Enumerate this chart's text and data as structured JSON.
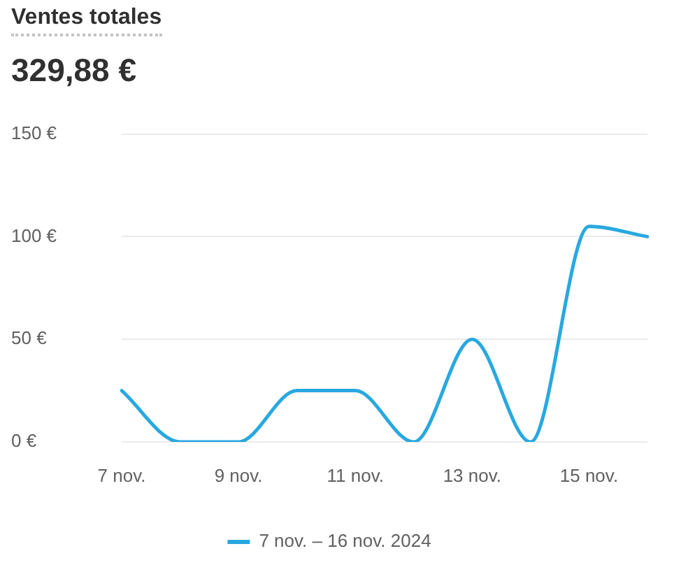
{
  "chart_data": {
    "type": "line",
    "title": "Ventes totales",
    "subtitle": "329,88 €",
    "categories": [
      "7 nov.",
      null,
      "9 nov.",
      null,
      "11 nov.",
      null,
      "13 nov.",
      null,
      "15 nov.",
      null
    ],
    "series": [
      {
        "name": "7 nov. – 16 nov. 2024",
        "color": "#29a8e0",
        "values": [
          25,
          0,
          0,
          25,
          25,
          0,
          50,
          0,
          105,
          100
        ]
      }
    ],
    "ylim": [
      0,
      150
    ],
    "yticks": [
      {
        "value": 0,
        "label": "0 €"
      },
      {
        "value": 50,
        "label": "50 €"
      },
      {
        "value": 100,
        "label": "100 €"
      },
      {
        "value": 150,
        "label": "150 €"
      }
    ],
    "grid": "y",
    "legend": "bottom",
    "marker": "none"
  }
}
